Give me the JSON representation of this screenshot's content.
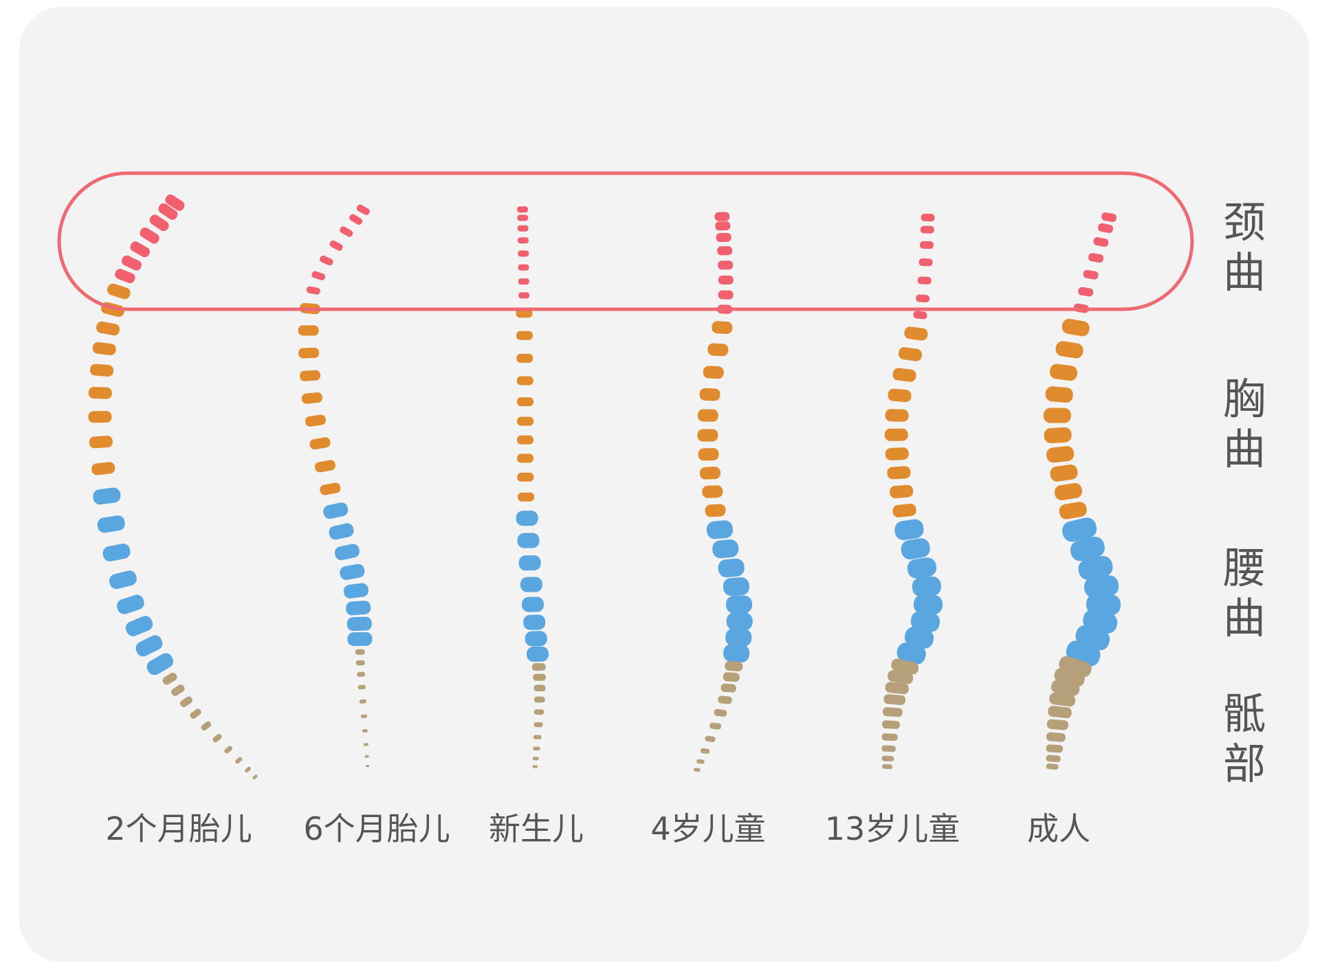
{
  "colors": {
    "background": "#f3f3f3",
    "cervical": "#f0606e",
    "thoracic": "#e08b2e",
    "lumbar": "#5aa6e0",
    "sacral": "#b6a07a",
    "highlight_outline": "#ee6a72",
    "label_text": "#555555"
  },
  "region_labels": [
    {
      "id": "cervical",
      "text": "颈曲"
    },
    {
      "id": "thoracic",
      "text": "胸曲"
    },
    {
      "id": "lumbar",
      "text": "腰曲"
    },
    {
      "id": "sacral",
      "text": "骶部"
    }
  ],
  "stages": [
    {
      "id": "fetus-2m",
      "label": "2个月胎儿"
    },
    {
      "id": "fetus-6m",
      "label": "6个月胎儿"
    },
    {
      "id": "newborn",
      "label": "新生儿"
    },
    {
      "id": "child-4y",
      "label": "4岁儿童"
    },
    {
      "id": "child-13y",
      "label": "13岁儿童"
    },
    {
      "id": "adult",
      "label": "成人"
    }
  ],
  "highlight": {
    "region": "cervical"
  }
}
